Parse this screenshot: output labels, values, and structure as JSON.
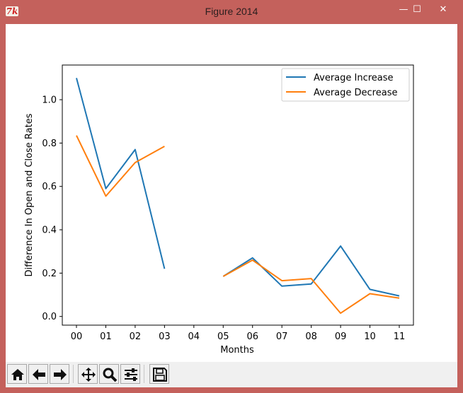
{
  "window": {
    "title": "Figure 2014",
    "app_icon_label": "7k",
    "minimize_glyph": "—",
    "maximize_glyph": "☐",
    "close_glyph": "✕"
  },
  "toolbar": {
    "buttons": [
      {
        "name": "home-button",
        "icon": "home-icon"
      },
      {
        "name": "back-button",
        "icon": "arrow-left-icon"
      },
      {
        "name": "forward-button",
        "icon": "arrow-right-icon"
      },
      {
        "name": "pan-button",
        "icon": "move-icon"
      },
      {
        "name": "zoom-button",
        "icon": "magnifier-icon"
      },
      {
        "name": "configure-subplots-button",
        "icon": "sliders-icon"
      },
      {
        "name": "save-button",
        "icon": "floppy-disk-icon"
      }
    ]
  },
  "chart_data": {
    "type": "line",
    "title": "",
    "xlabel": "Months",
    "ylabel": "Difference In Open and Close Rates",
    "categories": [
      "00",
      "01",
      "02",
      "03",
      "04",
      "05",
      "06",
      "07",
      "08",
      "09",
      "10",
      "11"
    ],
    "ylim": [
      -0.04,
      1.16
    ],
    "yticks": [
      0.0,
      0.2,
      0.4,
      0.6,
      0.8,
      1.0
    ],
    "ytick_labels": [
      "0.0",
      "0.2",
      "0.4",
      "0.6",
      "0.8",
      "1.0"
    ],
    "legend_position": "top-right",
    "grid": false,
    "series": [
      {
        "name": "Average Increase",
        "color": "#1f77b4",
        "values": [
          1.1,
          0.59,
          0.77,
          0.22,
          null,
          0.185,
          0.27,
          0.14,
          0.15,
          0.325,
          0.125,
          0.095
        ]
      },
      {
        "name": "Average Decrease",
        "color": "#ff7f0e",
        "values": [
          0.835,
          0.555,
          0.71,
          0.785,
          null,
          0.185,
          0.26,
          0.165,
          0.175,
          0.015,
          0.105,
          0.085
        ]
      }
    ]
  }
}
